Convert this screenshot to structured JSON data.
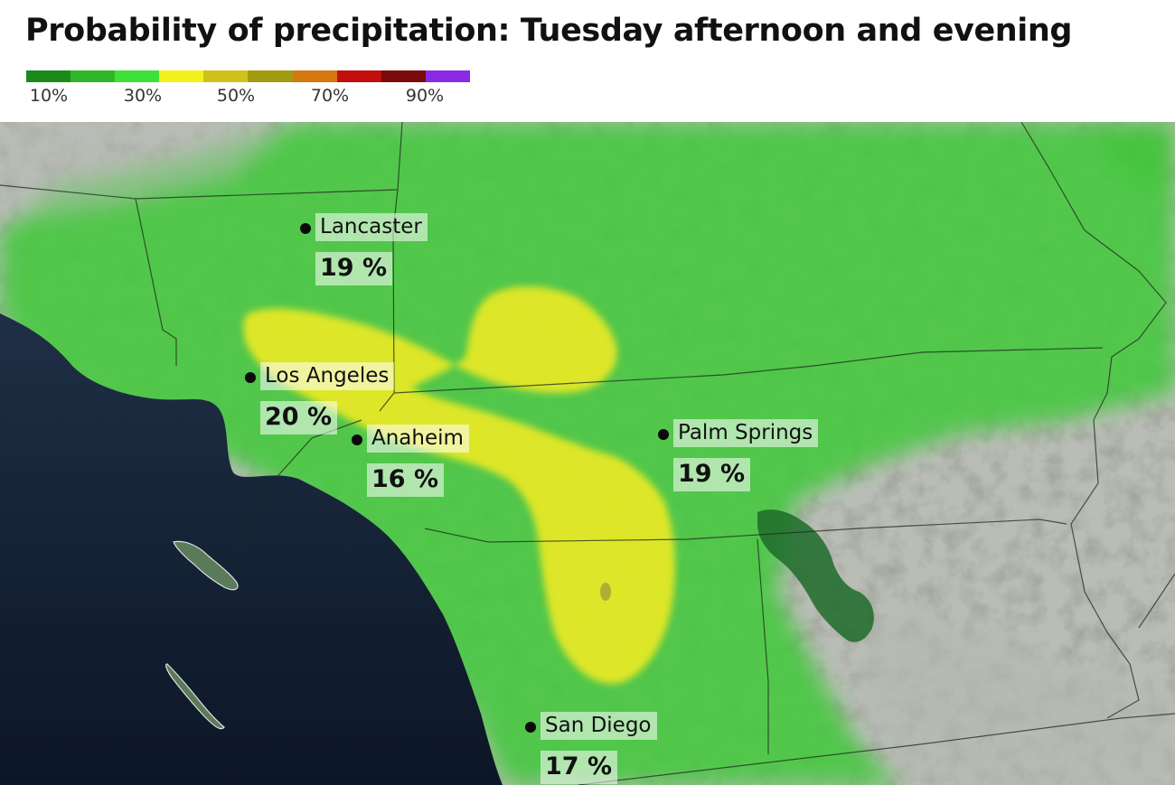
{
  "title": "Probability of precipitation: Tuesday afternoon and evening",
  "legend": {
    "colors": [
      "#1a8a1a",
      "#33b52a",
      "#3fe03a",
      "#f2f21a",
      "#cfc21a",
      "#a39b0f",
      "#d4780f",
      "#c40d0d",
      "#7a0a0a",
      "#8a2ae6"
    ],
    "labels": [
      "10%",
      "30%",
      "50%",
      "70%",
      "90%"
    ]
  },
  "cities": [
    {
      "name": "Lancaster",
      "value": "19 %"
    },
    {
      "name": "Los Angeles",
      "value": "20 %"
    },
    {
      "name": "Anaheim",
      "value": "16 %"
    },
    {
      "name": "Palm Springs",
      "value": "19 %"
    },
    {
      "name": "San Diego",
      "value": "17 %"
    }
  ]
}
